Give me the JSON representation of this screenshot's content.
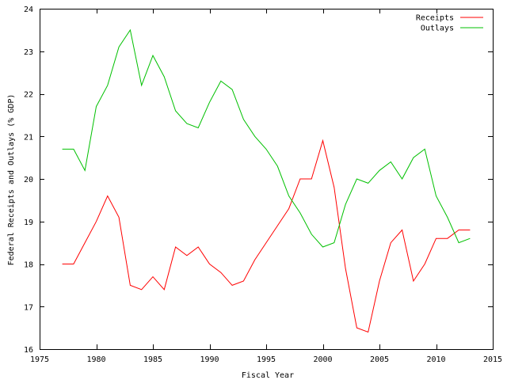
{
  "chart_data": {
    "type": "line",
    "title": "",
    "xlabel": "Fiscal Year",
    "ylabel": "Federal Receipts and Outlays (% GDP)",
    "xlim": [
      1975,
      2015
    ],
    "ylim": [
      16,
      24
    ],
    "xticks": [
      1975,
      1980,
      1985,
      1990,
      1995,
      2000,
      2005,
      2010,
      2015
    ],
    "yticks": [
      16,
      17,
      18,
      19,
      20,
      21,
      22,
      23,
      24
    ],
    "grid": false,
    "legend": "top-right",
    "x": [
      1977,
      1978,
      1979,
      1980,
      1981,
      1982,
      1983,
      1984,
      1985,
      1986,
      1987,
      1988,
      1989,
      1990,
      1991,
      1992,
      1993,
      1994,
      1995,
      1996,
      1997,
      1998,
      1999,
      2000,
      2001,
      2002,
      2003,
      2004,
      2005,
      2006,
      2007,
      2008,
      2009,
      2010,
      2011,
      2012,
      2013
    ],
    "series": [
      {
        "name": "Receipts",
        "color": "#ff0000",
        "values": [
          18.0,
          18.0,
          18.5,
          19.0,
          19.6,
          19.1,
          17.5,
          17.4,
          17.7,
          17.4,
          18.4,
          18.2,
          18.4,
          18.0,
          17.8,
          17.5,
          17.6,
          18.1,
          18.5,
          18.9,
          19.3,
          20.0,
          20.0,
          20.9,
          19.8,
          17.9,
          16.5,
          16.4,
          17.6,
          18.5,
          18.8,
          17.6,
          18.0,
          18.6,
          18.6,
          18.8,
          18.8
        ]
      },
      {
        "name": "Outlays",
        "color": "#00c000",
        "values": [
          20.7,
          20.7,
          20.2,
          21.7,
          22.2,
          23.1,
          23.5,
          22.2,
          22.9,
          22.4,
          21.6,
          21.3,
          21.2,
          21.8,
          22.3,
          22.1,
          21.4,
          21.0,
          20.7,
          20.3,
          19.6,
          19.2,
          18.7,
          18.4,
          18.5,
          19.4,
          20.0,
          19.9,
          20.2,
          20.4,
          20.0,
          20.5,
          20.7,
          19.6,
          19.1,
          18.5,
          18.6
        ]
      }
    ]
  }
}
